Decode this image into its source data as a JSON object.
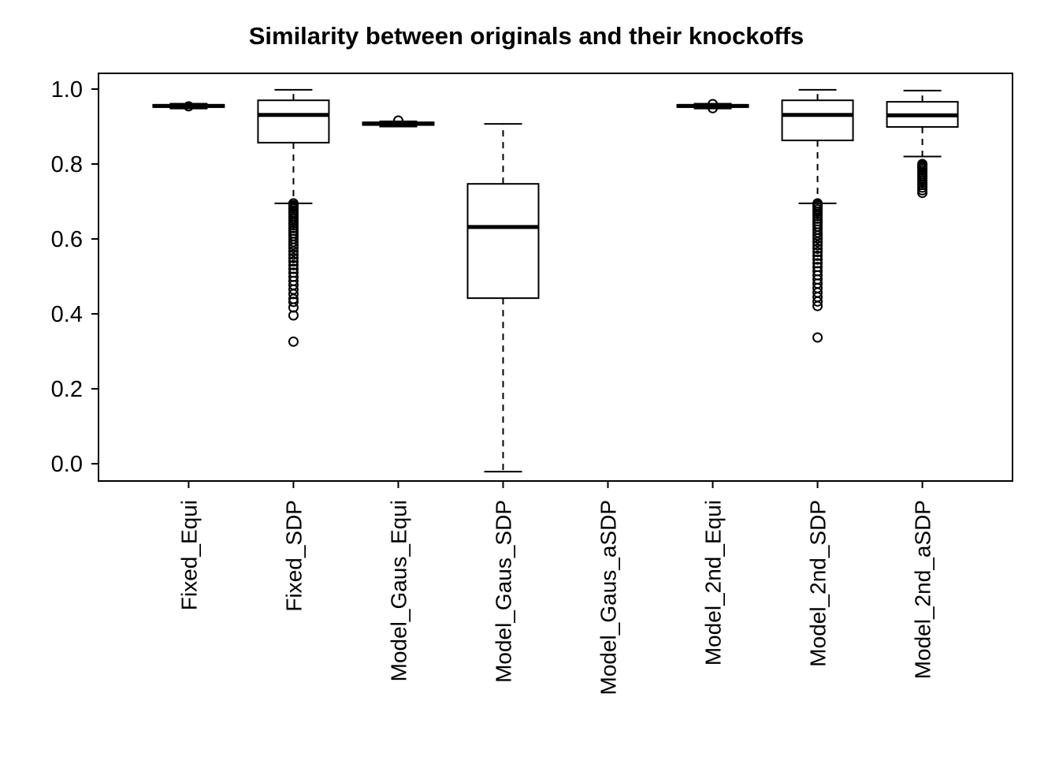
{
  "chart_data": {
    "type": "boxplot",
    "title": "Similarity between originals and their knockoffs",
    "xlabel": "",
    "ylabel": "",
    "ylim": [
      -0.046,
      1.042
    ],
    "yticks": [
      0.0,
      0.2,
      0.4,
      0.6,
      0.8,
      1.0
    ],
    "grid": false,
    "legend": false,
    "colors": {
      "stroke": "#000000",
      "box_fill": "#ffffff",
      "background": "#ffffff"
    },
    "categories": [
      "Fixed_Equi",
      "Fixed_SDP",
      "Model_Gaus_Equi",
      "Model_Gaus_SDP",
      "Model_Gaus_aSDP",
      "Model_2nd_Equi",
      "Model_2nd_SDP",
      "Model_2nd_aSDP"
    ],
    "boxes": [
      {
        "category": "Fixed_Equi",
        "whisker_low": 0.948,
        "q1": 0.952,
        "median": 0.955,
        "q3": 0.958,
        "whisker_high": 0.961,
        "outliers": [
          0.954
        ]
      },
      {
        "category": "Fixed_SDP",
        "whisker_low": 0.695,
        "q1": 0.857,
        "median": 0.931,
        "q3": 0.97,
        "whisker_high": 0.998,
        "outliers": [
          0.695,
          0.69,
          0.686,
          0.681,
          0.676,
          0.671,
          0.666,
          0.66,
          0.654,
          0.648,
          0.642,
          0.636,
          0.629,
          0.622,
          0.615,
          0.608,
          0.6,
          0.592,
          0.584,
          0.576,
          0.567,
          0.558,
          0.549,
          0.54,
          0.53,
          0.52,
          0.51,
          0.499,
          0.488,
          0.477,
          0.465,
          0.453,
          0.44,
          0.432,
          0.417,
          0.396,
          0.326
        ]
      },
      {
        "category": "Model_Gaus_Equi",
        "whisker_low": 0.9,
        "q1": 0.904,
        "median": 0.908,
        "q3": 0.911,
        "whisker_high": 0.914,
        "outliers": [
          0.916
        ]
      },
      {
        "category": "Model_Gaus_SDP",
        "whisker_low": -0.021,
        "q1": 0.442,
        "median": 0.632,
        "q3": 0.747,
        "whisker_high": 0.907,
        "outliers": []
      },
      {
        "category": "Model_Gaus_aSDP",
        "empty": true
      },
      {
        "category": "Model_2nd_Equi",
        "whisker_low": 0.948,
        "q1": 0.952,
        "median": 0.955,
        "q3": 0.958,
        "whisker_high": 0.961,
        "outliers": [
          0.949,
          0.96
        ]
      },
      {
        "category": "Model_2nd_SDP",
        "whisker_low": 0.695,
        "q1": 0.863,
        "median": 0.931,
        "q3": 0.97,
        "whisker_high": 0.998,
        "outliers": [
          0.695,
          0.69,
          0.685,
          0.679,
          0.673,
          0.667,
          0.661,
          0.654,
          0.647,
          0.64,
          0.633,
          0.625,
          0.617,
          0.609,
          0.601,
          0.592,
          0.583,
          0.574,
          0.565,
          0.555,
          0.545,
          0.535,
          0.525,
          0.514,
          0.503,
          0.492,
          0.481,
          0.469,
          0.457,
          0.445,
          0.433,
          0.421,
          0.337
        ]
      },
      {
        "category": "Model_2nd_aSDP",
        "whisker_low": 0.82,
        "q1": 0.899,
        "median": 0.93,
        "q3": 0.966,
        "whisker_high": 0.996,
        "outliers": [
          0.8,
          0.796,
          0.792,
          0.788,
          0.783,
          0.778,
          0.773,
          0.768,
          0.762,
          0.756,
          0.75,
          0.744,
          0.737,
          0.73,
          0.723
        ]
      }
    ]
  }
}
